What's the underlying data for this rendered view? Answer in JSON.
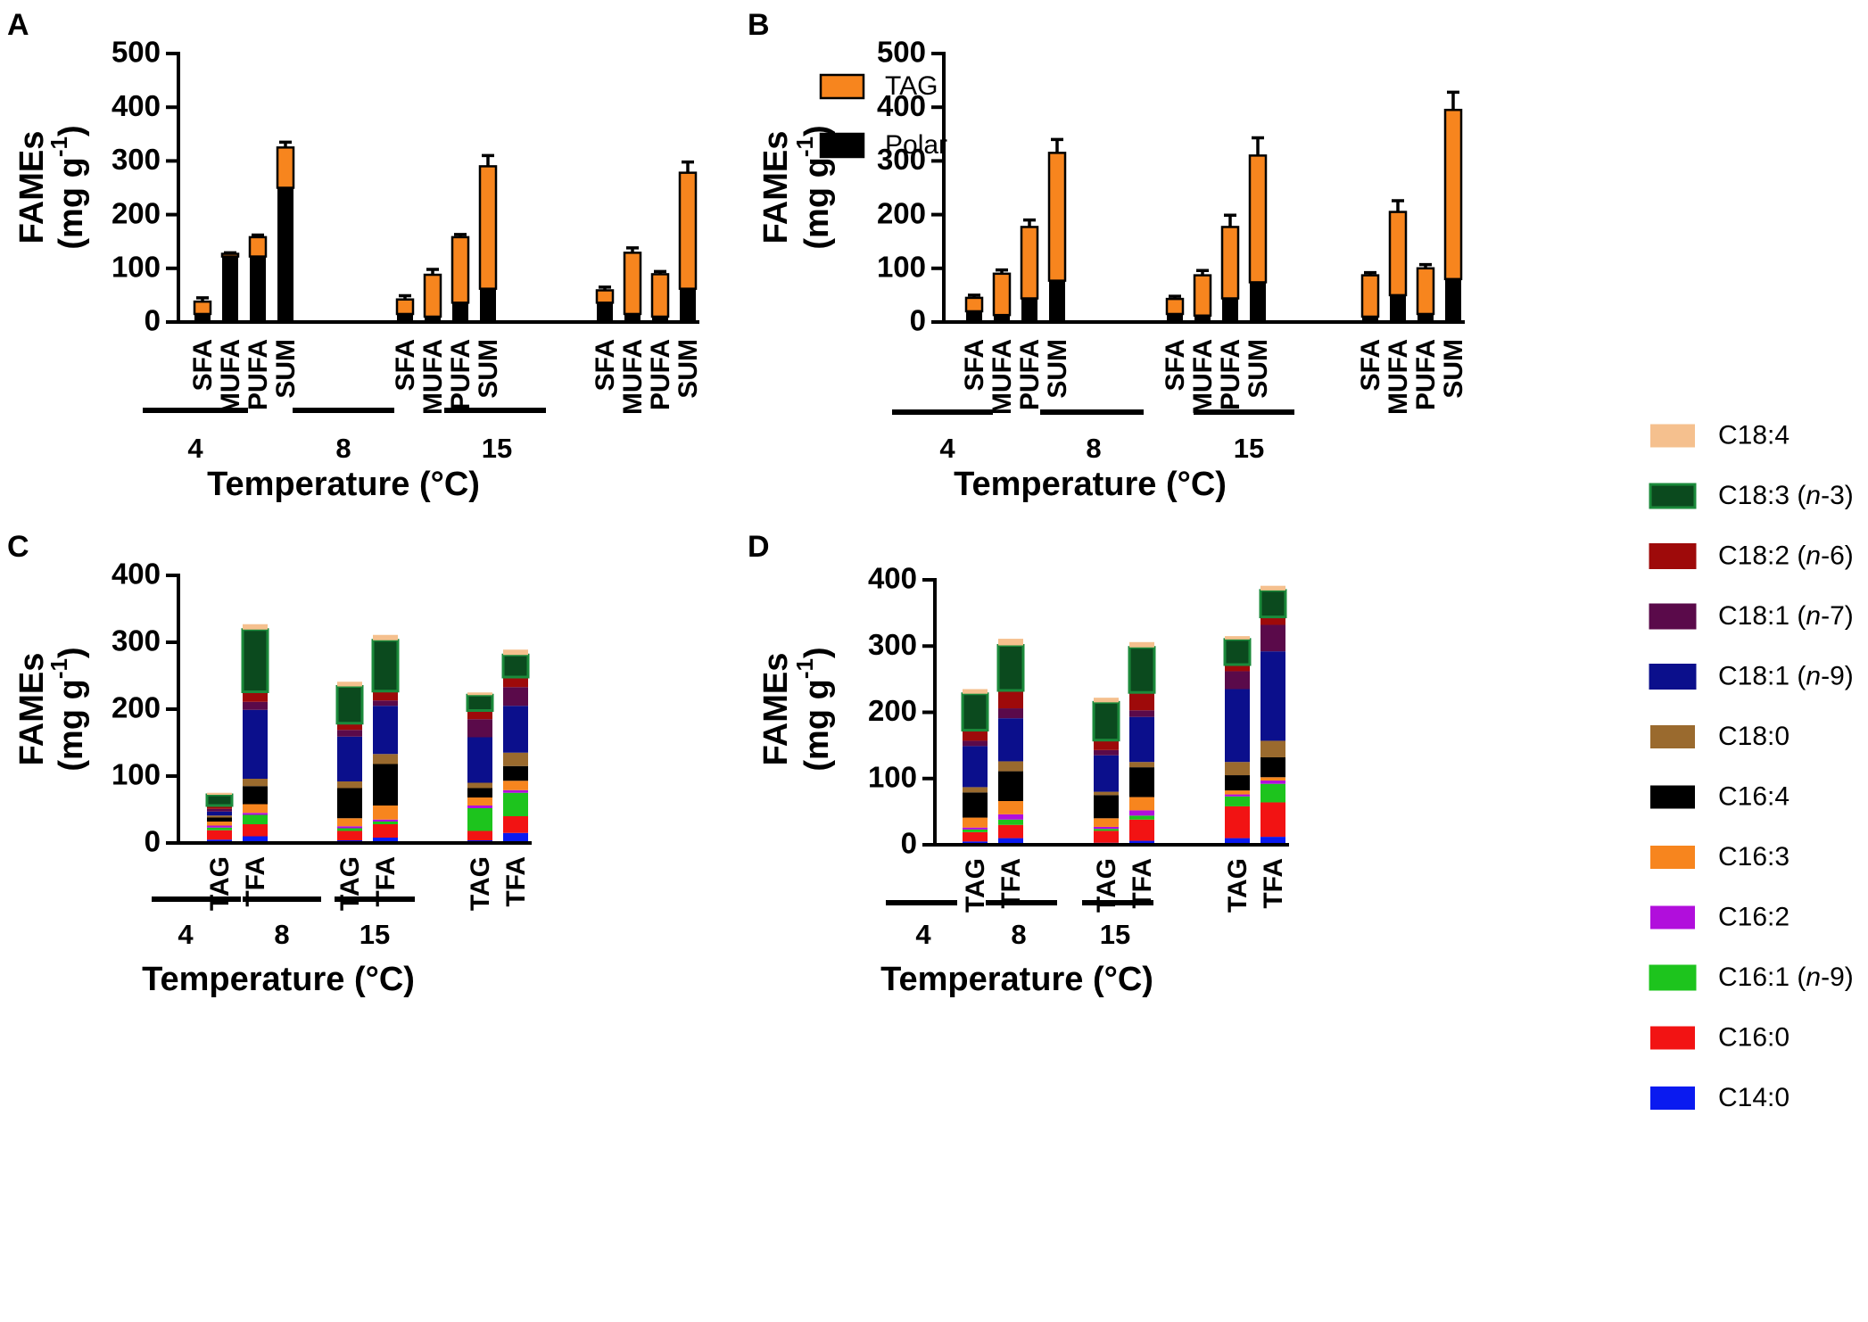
{
  "figure": {
    "legend_ab": [
      {
        "name": "TAG",
        "color": "#F7851E"
      },
      {
        "name": "Polar",
        "color": "#000000"
      }
    ],
    "legend_cd": [
      {
        "pre": "C18:4",
        "it": "",
        "post": "",
        "color": "#F5C08E",
        "border": "#F5C08E"
      },
      {
        "pre": "C18:3 (",
        "it": "n",
        "post": "-3)",
        "color": "#0B4A1E",
        "border": "#1B8A3B"
      },
      {
        "pre": "C18:2 (",
        "it": "n",
        "post": "-6)",
        "color": "#9E0A0A",
        "border": "#9E0A0A"
      },
      {
        "pre": "C18:1 (",
        "it": "n",
        "post": "-7)",
        "color": "#5A0A4A",
        "border": "#5A0A4A"
      },
      {
        "pre": "C18:1 (",
        "it": "n",
        "post": "-9)",
        "color": "#0B0F8C",
        "border": "#0B0F8C"
      },
      {
        "pre": "C18:0",
        "it": "",
        "post": "",
        "color": "#9A6A2E",
        "border": "#9A6A2E"
      },
      {
        "pre": "C16:4",
        "it": "",
        "post": "",
        "color": "#000000",
        "border": "#000000"
      },
      {
        "pre": "C16:3",
        "it": "",
        "post": "",
        "color": "#F7851E",
        "border": "#F7851E"
      },
      {
        "pre": "C16:2",
        "it": "",
        "post": "",
        "color": "#B10EDC",
        "border": "#B10EDC"
      },
      {
        "pre": "C16:1 (",
        "it": "n",
        "post": "-9)",
        "color": "#1DC41D",
        "border": "#1DC41D"
      },
      {
        "pre": "C16:0",
        "it": "",
        "post": "",
        "color": "#F21313",
        "border": "#F21313"
      },
      {
        "pre": "C14:0",
        "it": "",
        "post": "",
        "color": "#0A1AF0",
        "border": "#0A1AF0"
      }
    ]
  },
  "chart_data": [
    {
      "panel": "A",
      "type": "bar",
      "stacked": true,
      "ylabel_line1": "FAMEs",
      "ylabel_line2": "(mg g",
      "ylabel_sup": "-1",
      "ylabel_close": ")",
      "xlabel": "Temperature (°C)",
      "ylim": [
        0,
        500
      ],
      "yticks": [
        0,
        100,
        200,
        300,
        400,
        500
      ],
      "groups": [
        "4",
        "8",
        "15"
      ],
      "categories": [
        "SFA",
        "MUFA",
        "PUFA",
        "SUM"
      ],
      "series": [
        {
          "name": "Polar",
          "values": [
            [
              15,
              122,
              122,
              250
            ],
            [
              15,
              10,
              36,
              62
            ],
            [
              36,
              15,
              10,
              62
            ]
          ]
        },
        {
          "name": "TAG",
          "values": [
            [
              23,
              5,
              36,
              75
            ],
            [
              27,
              78,
              122,
              228
            ],
            [
              23,
              114,
              79,
              216
            ]
          ]
        }
      ],
      "error": [
        [
          7,
          2,
          4,
          10
        ],
        [
          7,
          10,
          5,
          20
        ],
        [
          6,
          9,
          5,
          20
        ]
      ]
    },
    {
      "panel": "B",
      "type": "bar",
      "stacked": true,
      "ylabel_line1": "FAMEs",
      "ylabel_line2": "(mg g",
      "ylabel_sup": "-1",
      "ylabel_close": ")",
      "xlabel": "Temperature (°C)",
      "ylim": [
        0,
        500
      ],
      "yticks": [
        0,
        100,
        200,
        300,
        400,
        500
      ],
      "groups": [
        "4",
        "8",
        "15"
      ],
      "categories": [
        "SFA",
        "MUFA",
        "PUFA",
        "SUM"
      ],
      "series": [
        {
          "name": "Polar",
          "values": [
            [
              20,
              13,
              44,
              77
            ],
            [
              15,
              12,
              44,
              74
            ],
            [
              10,
              50,
              15,
              80
            ]
          ]
        },
        {
          "name": "TAG",
          "values": [
            [
              25,
              77,
              133,
              238
            ],
            [
              28,
              75,
              133,
              236
            ],
            [
              77,
              155,
              85,
              315
            ]
          ]
        }
      ],
      "error": [
        [
          5,
          7,
          13,
          25
        ],
        [
          5,
          9,
          22,
          33
        ],
        [
          5,
          21,
          7,
          33
        ]
      ]
    },
    {
      "panel": "C",
      "type": "bar",
      "stacked": true,
      "ylabel_line1": "FAMEs",
      "ylabel_line2": "(mg g",
      "ylabel_sup": "-1",
      "ylabel_close": ")",
      "xlabel": "Temperature (°C)",
      "ylim": [
        0,
        400
      ],
      "yticks": [
        0,
        100,
        200,
        300,
        400
      ],
      "groups": [
        "4",
        "8",
        "15"
      ],
      "categories": [
        "TAG",
        "TFA"
      ],
      "series_order": [
        "C14:0",
        "C16:0",
        "C16:1 (n-9)",
        "C16:2",
        "C16:3",
        "C16:4",
        "C18:0",
        "C18:1 (n-9)",
        "C18:1 (n-7)",
        "C18:2 (n-6)",
        "C18:3 (n-3)",
        "C18:4"
      ],
      "stacks": [
        [
          [
            5,
            14,
            4,
            3,
            6,
            6,
            3,
            6,
            4,
            5,
            16,
            3
          ],
          [
            10,
            18,
            14,
            3,
            13,
            27,
            11,
            103,
            12,
            15,
            93,
            8
          ]
        ],
        [
          [
            4,
            14,
            4,
            3,
            12,
            45,
            10,
            67,
            10,
            10,
            55,
            7
          ],
          [
            8,
            20,
            4,
            3,
            21,
            62,
            15,
            72,
            8,
            14,
            76,
            8
          ]
        ],
        [
          [
            4,
            14,
            34,
            4,
            12,
            14,
            8,
            68,
            27,
            13,
            23,
            4
          ],
          [
            15,
            25,
            35,
            4,
            14,
            22,
            20,
            70,
            28,
            15,
            33,
            8
          ]
        ]
      ]
    },
    {
      "panel": "D",
      "type": "bar",
      "stacked": true,
      "ylabel_line1": "FAMEs",
      "ylabel_line2": "(mg g",
      "ylabel_sup": "-1",
      "ylabel_close": ")",
      "xlabel": "Temperature (°C)",
      "ylim": [
        0,
        400
      ],
      "yticks": [
        0,
        100,
        200,
        300,
        400
      ],
      "groups": [
        "4",
        "8",
        "15"
      ],
      "categories": [
        "TAG",
        "TFA"
      ],
      "series_order": [
        "C14:0",
        "C16:0",
        "C16:1 (n-9)",
        "C16:2",
        "C16:3",
        "C16:4",
        "C18:0",
        "C18:1 (n-9)",
        "C18:1 (n-7)",
        "C18:2 (n-6)",
        "C18:3 (n-3)",
        "C18:4"
      ],
      "stacks": [
        [
          [
            5,
            14,
            4,
            3,
            15,
            38,
            8,
            62,
            8,
            16,
            55,
            7
          ],
          [
            10,
            20,
            8,
            8,
            20,
            45,
            15,
            65,
            15,
            27,
            68,
            10
          ]
        ],
        [
          [
            3,
            18,
            3,
            3,
            13,
            35,
            5,
            55,
            8,
            15,
            57,
            7
          ],
          [
            6,
            32,
            6,
            8,
            20,
            45,
            8,
            68,
            10,
            27,
            68,
            8
          ]
        ],
        [
          [
            10,
            48,
            15,
            3,
            6,
            23,
            20,
            110,
            27,
            10,
            38,
            5
          ],
          [
            12,
            52,
            28,
            5,
            5,
            30,
            25,
            135,
            40,
            12,
            40,
            7
          ]
        ]
      ]
    }
  ]
}
